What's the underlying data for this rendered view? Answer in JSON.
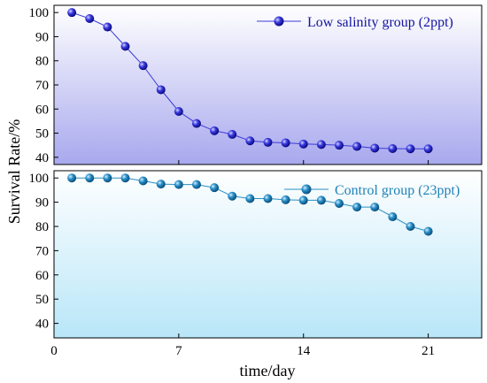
{
  "chart_data": [
    {
      "type": "line",
      "x": [
        1,
        2,
        3,
        4,
        5,
        6,
        7,
        8,
        9,
        10,
        11,
        12,
        13,
        14,
        15,
        16,
        17,
        18,
        19,
        20,
        21
      ],
      "series": [
        {
          "name": "Low salinity group (2ppt)",
          "values": [
            100,
            97.5,
            94,
            86,
            78,
            68,
            59,
            54,
            51,
            49.5,
            46.8,
            46.2,
            46,
            45.5,
            45.3,
            45,
            44.5,
            43.8,
            43.6,
            43.5,
            43.5
          ]
        }
      ],
      "xlabel": "",
      "ylabel": "",
      "xlim": [
        0,
        24
      ],
      "ylim": [
        37,
        103
      ],
      "yticks": [
        40,
        50,
        60,
        70,
        80,
        90,
        100
      ],
      "xticks": [
        0,
        7,
        14,
        21
      ],
      "show_xtick_labels": false,
      "legend": "top-right",
      "grid": false,
      "colors": {
        "line": "#3a3ad6",
        "marker": "#1414b4",
        "fill_top": "#ffffff",
        "fill_bottom": "#a8a8ee"
      }
    },
    {
      "type": "line",
      "x": [
        1,
        2,
        3,
        4,
        5,
        6,
        7,
        8,
        9,
        10,
        11,
        12,
        13,
        14,
        15,
        16,
        17,
        18,
        19,
        20,
        21
      ],
      "series": [
        {
          "name": "Control group (23ppt)",
          "values": [
            100,
            100,
            100,
            100,
            98.8,
            97.5,
            97.3,
            97.3,
            96,
            92.5,
            91.5,
            91.5,
            91,
            90.8,
            90.8,
            89.5,
            88,
            88,
            84,
            80,
            78
          ]
        }
      ],
      "xlabel": "time/day",
      "ylabel": "",
      "xlim": [
        0,
        24
      ],
      "ylim": [
        34,
        103
      ],
      "yticks": [
        40,
        50,
        60,
        70,
        80,
        90,
        100
      ],
      "xticks": [
        0,
        7,
        14,
        21
      ],
      "show_xtick_labels": true,
      "legend": "top-right",
      "grid": false,
      "colors": {
        "line": "#2a8fc4",
        "marker": "#1e7bb0",
        "fill_top": "#ffffff",
        "fill_bottom": "#b8e6f8"
      }
    }
  ],
  "shared_ylabel": "Survival Rate/%"
}
